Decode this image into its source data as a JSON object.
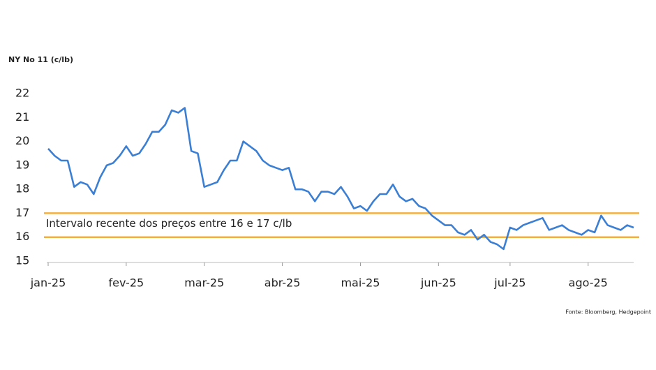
{
  "chart_data": {
    "type": "line",
    "title": "NY No 11 (c/lb)",
    "source": "Fonte: Bloomberg, Hedgepoint",
    "annotation": "Intervalo recente dos preços entre 16 e 17 c/lb",
    "reference_lines": [
      16,
      17
    ],
    "reference_color": "#f0b042",
    "color": "#3b7fd4",
    "ylim": [
      15,
      22
    ],
    "yticks": [
      15,
      16,
      17,
      18,
      19,
      20,
      21,
      22
    ],
    "categories": [
      "jan-25",
      null,
      null,
      null,
      null,
      null,
      null,
      null,
      null,
      null,
      null,
      null,
      "fev-25",
      null,
      null,
      null,
      null,
      null,
      null,
      null,
      null,
      null,
      null,
      null,
      "mar-25",
      null,
      null,
      null,
      null,
      null,
      null,
      null,
      null,
      null,
      null,
      null,
      "abr-25",
      null,
      null,
      null,
      null,
      null,
      null,
      null,
      null,
      null,
      null,
      null,
      "mai-25",
      null,
      null,
      null,
      null,
      null,
      null,
      null,
      null,
      null,
      null,
      null,
      "jun-25",
      null,
      null,
      null,
      null,
      null,
      null,
      null,
      null,
      null,
      null,
      "jul-25",
      null,
      null,
      null,
      null,
      null,
      null,
      null,
      null,
      null,
      null,
      null,
      "ago-25",
      null,
      null,
      null,
      null,
      null,
      null,
      null
    ],
    "values": [
      19.7,
      19.4,
      19.2,
      19.2,
      18.1,
      18.3,
      18.2,
      17.8,
      18.5,
      19.0,
      19.1,
      19.4,
      19.8,
      19.4,
      19.5,
      19.9,
      20.4,
      20.4,
      20.7,
      21.3,
      21.2,
      21.4,
      19.6,
      19.5,
      18.1,
      18.2,
      18.3,
      18.8,
      19.2,
      19.2,
      20.0,
      19.8,
      19.6,
      19.2,
      19.0,
      18.9,
      18.8,
      18.9,
      18.0,
      18.0,
      17.9,
      17.5,
      17.9,
      17.9,
      17.8,
      18.1,
      17.7,
      17.2,
      17.3,
      17.1,
      17.5,
      17.8,
      17.8,
      18.2,
      17.7,
      17.5,
      17.6,
      17.3,
      17.2,
      16.9,
      16.7,
      16.5,
      16.5,
      16.2,
      16.1,
      16.3,
      15.9,
      16.1,
      15.8,
      15.7,
      15.5,
      16.4,
      16.3,
      16.5,
      16.6,
      16.7,
      16.8,
      16.3,
      16.4,
      16.5,
      16.3,
      16.2,
      16.1,
      16.3,
      16.2,
      16.9,
      16.5,
      16.4,
      16.3,
      16.5,
      16.4
    ]
  }
}
